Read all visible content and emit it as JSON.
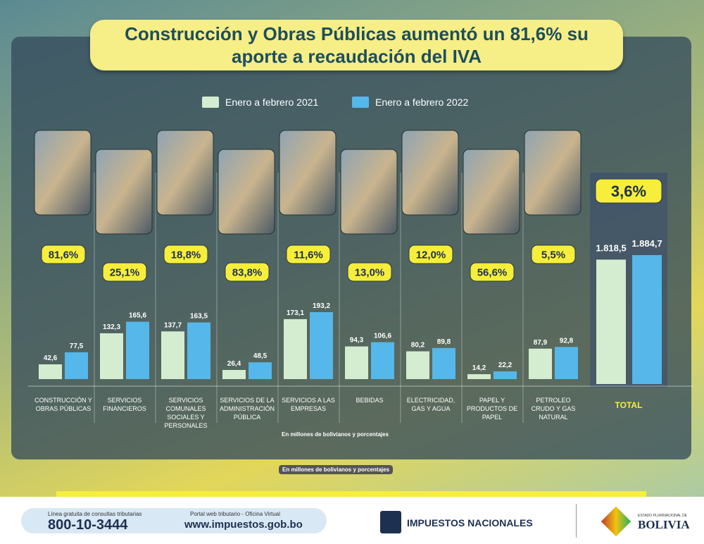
{
  "chart_data": {
    "type": "bar",
    "title": "Construcción y Obras Públicas aumentó un 81,6% su aporte a recaudación del IVA",
    "categories": [
      "CONSTRUCCIÓN Y OBRAS PÚBLICAS",
      "SERVICIOS FINANCIEROS",
      "SERVICIOS COMUNALES SOCIALES Y PERSONALES",
      "SERVICIOS DE LA ADMINISTRACIÓN PÚBLICA",
      "SERVICIOS A LAS EMPRESAS",
      "BEBIDAS",
      "ELECTRICIDAD, GAS Y AGUA",
      "PAPEL Y PRODUCTOS DE PAPEL",
      "PETROLEO CRUDO Y GAS NATURAL"
    ],
    "series": [
      {
        "name": "Enero a febrero 2021",
        "color": "#d4ecd0",
        "values": [
          42.6,
          132.3,
          137.7,
          26.4,
          173.1,
          94.3,
          80.2,
          14.2,
          87.9
        ],
        "value_labels": [
          "42,6",
          "132,3",
          "137,7",
          "26,4",
          "173,1",
          "94,3",
          "80,2",
          "14,2",
          "87,9"
        ]
      },
      {
        "name": "Enero a febrero 2022",
        "color": "#55b7ea",
        "values": [
          77.5,
          165.6,
          163.5,
          48.5,
          193.2,
          106.6,
          89.8,
          22.2,
          92.8
        ],
        "value_labels": [
          "77,5",
          "165,6",
          "163,5",
          "48,5",
          "193,2",
          "106,6",
          "89,8",
          "22,2",
          "92,8"
        ]
      }
    ],
    "change_labels": [
      "81,6%",
      "25,1%",
      "18,8%",
      "83,8%",
      "11,6%",
      "13,0%",
      "12,0%",
      "56,6%",
      "5,5%"
    ],
    "total": {
      "label": "TOTAL",
      "values": [
        1818.5,
        1884.7
      ],
      "value_labels": [
        "1.818,5",
        "1.884,7"
      ],
      "change_label": "3,6%"
    },
    "note": "En millones de bolivianos y porcentajes"
  },
  "footer": {
    "hotline_text": "Línea gratuita de consultas tributarias",
    "phone": "800-10-3444",
    "portal_text": "Portal web tributario - Oficina Virtual",
    "url": "www.impuestos.gob.bo",
    "brand": "IMPUESTOS NACIONALES",
    "state": "ESTADO PLURINACIONAL DE",
    "country": "BOLIVIA"
  }
}
